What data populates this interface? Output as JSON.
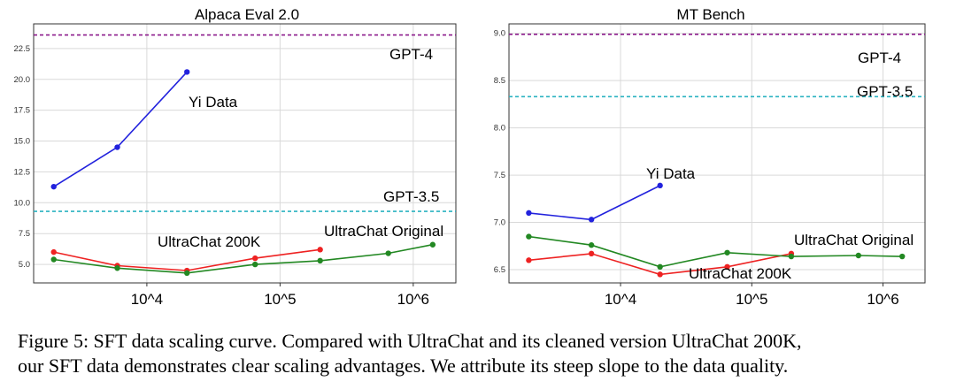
{
  "chart_data": [
    {
      "type": "line",
      "title": "Alpaca Eval 2.0",
      "xscale": "log",
      "xticks": [
        "10^4",
        "10^5",
        "10^6"
      ],
      "yticks": [
        "5.0",
        "7.5",
        "10.0",
        "12.5",
        "15.0",
        "17.5",
        "20.0",
        "22.5"
      ],
      "ylim": [
        3.5,
        24.5
      ],
      "xlim_log10": [
        3.15,
        6.32
      ],
      "grid": true,
      "series": [
        {
          "name": "Yi Data",
          "color": "#2222dd",
          "x": [
            2000,
            6000,
            20000
          ],
          "y": [
            11.3,
            14.5,
            20.6
          ]
        },
        {
          "name": "UltraChat 200K",
          "color": "#ee2222",
          "x": [
            2000,
            6000,
            20000,
            65000,
            200000
          ],
          "y": [
            6.0,
            4.9,
            4.5,
            5.5,
            6.2
          ]
        },
        {
          "name": "UltraChat Original",
          "color": "#228822",
          "x": [
            2000,
            6000,
            20000,
            65000,
            200000,
            650000,
            1400000
          ],
          "y": [
            5.4,
            4.7,
            4.3,
            5.0,
            5.3,
            5.9,
            6.6
          ]
        }
      ],
      "reference_lines": [
        {
          "name": "GPT-4",
          "y": 23.6,
          "color": "#8b1a8b"
        },
        {
          "name": "GPT-3.5",
          "y": 9.3,
          "color": "#2bb3c0"
        }
      ]
    },
    {
      "type": "line",
      "title": "MT Bench",
      "xscale": "log",
      "xticks": [
        "10^4",
        "10^5",
        "10^6"
      ],
      "yticks": [
        "6.5",
        "7.0",
        "7.5",
        "8.0",
        "8.5",
        "9.0"
      ],
      "ylim": [
        6.36,
        9.1
      ],
      "xlim_log10": [
        3.15,
        6.32
      ],
      "grid": true,
      "series": [
        {
          "name": "Yi Data",
          "color": "#2222dd",
          "x": [
            2000,
            6000,
            20000
          ],
          "y": [
            7.1,
            7.03,
            7.39
          ]
        },
        {
          "name": "UltraChat 200K",
          "color": "#ee2222",
          "x": [
            2000,
            6000,
            20000,
            65000,
            200000
          ],
          "y": [
            6.6,
            6.67,
            6.45,
            6.53,
            6.67
          ]
        },
        {
          "name": "UltraChat Original",
          "color": "#228822",
          "x": [
            2000,
            6000,
            20000,
            65000,
            200000,
            650000,
            1400000
          ],
          "y": [
            6.85,
            6.76,
            6.53,
            6.68,
            6.64,
            6.65,
            6.64
          ]
        }
      ],
      "reference_lines": [
        {
          "name": "GPT-4",
          "y": 8.99,
          "color": "#8b1a8b"
        },
        {
          "name": "GPT-3.5",
          "y": 8.33,
          "color": "#2bb3c0"
        }
      ]
    }
  ],
  "caption": {
    "line1": "Figure 5: SFT data scaling curve. Compared with UltraChat and its cleaned version UltraChat 200K,",
    "line2": "our SFT data demonstrates clear scaling advantages. We attribute its steep slope to the data quality."
  }
}
